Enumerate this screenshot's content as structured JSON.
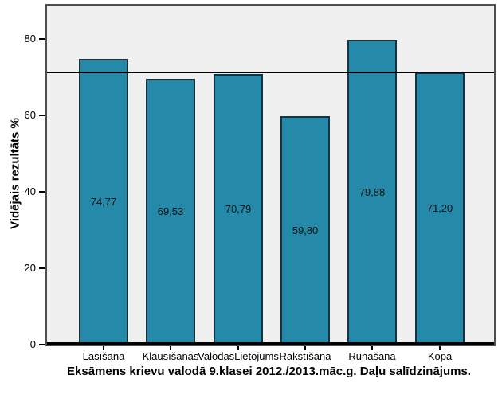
{
  "figure": {
    "y_axis_title": "Vidējais rezultāts %",
    "caption": "Eksāmens krievu valodā 9.klasei 2012./2013.māc.g. Daļu salīdzinājums."
  },
  "chart_data": {
    "type": "bar",
    "title": "Eksāmens krievu valodā 9.klasei 2012./2013.māc.g. Daļu salīdzinājums.",
    "xlabel": "",
    "ylabel": "Vidējais rezultāts %",
    "categories": [
      "Lasīšana",
      "Klausīšanās",
      "ValodasLietojums",
      "Rakstīšana",
      "Runāšana",
      "Kopā"
    ],
    "values": [
      74.77,
      69.53,
      70.79,
      59.8,
      79.88,
      71.2
    ],
    "value_labels": [
      "74,77",
      "69,53",
      "70,79",
      "59,80",
      "79,88",
      "71,20"
    ],
    "yticks": [
      0,
      20,
      40,
      60,
      80
    ],
    "ytick_labels": [
      "0",
      "20",
      "40",
      "60",
      "80"
    ],
    "ylim": [
      0,
      88.75
    ],
    "reference_line": 71.2,
    "grid": false,
    "legend": null,
    "colors": {
      "bar_fill": "#2589A9",
      "bar_edge": "#15333E",
      "plot_background": "#F0F0F0",
      "figure_background": "#FFFFFF",
      "reference_line": "#000000",
      "axis_frame": "#4F4F4F"
    }
  }
}
